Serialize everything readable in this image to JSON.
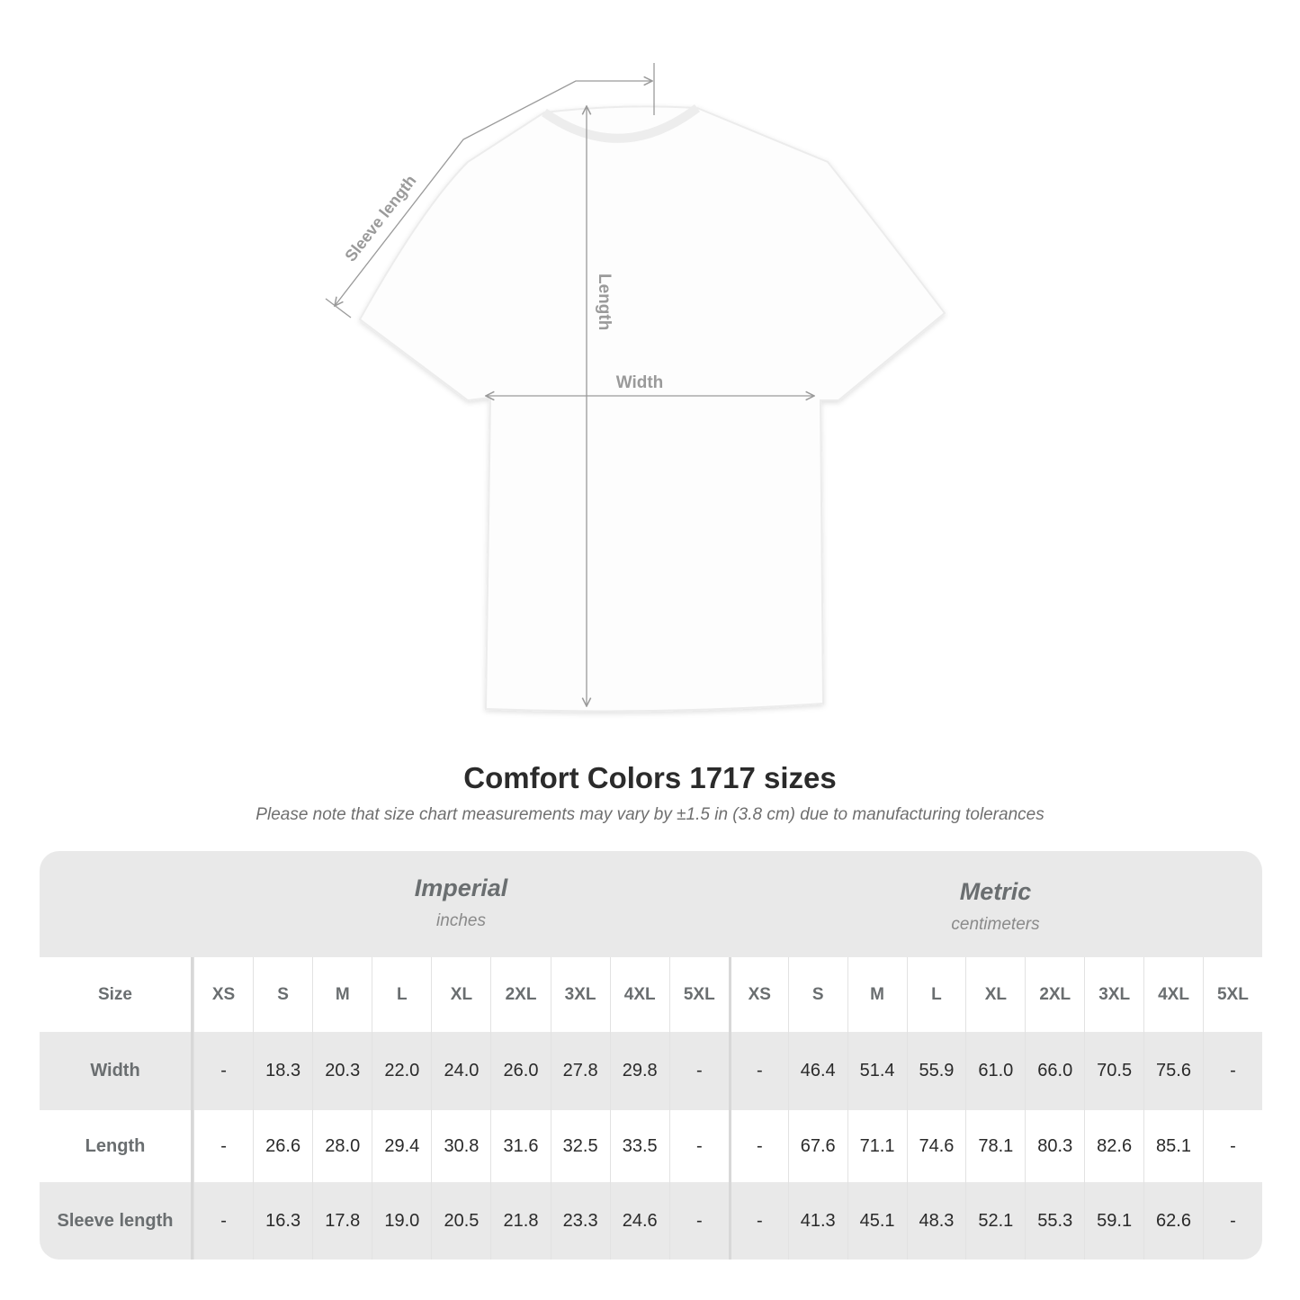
{
  "diagram": {
    "labels": {
      "sleeve": "Sleeve length",
      "length": "Length",
      "width": "Width"
    },
    "line_color": "#9a9a9a"
  },
  "title": "Comfort Colors 1717 sizes",
  "note": "Please note that size chart measurements may vary by ±1.5 in (3.8 cm) due to manufacturing tolerances",
  "table": {
    "groups": [
      {
        "title": "Imperial",
        "unit": "inches"
      },
      {
        "title": "Metric",
        "unit": "centimeters"
      }
    ],
    "size_label": "Size",
    "sizes": [
      "XS",
      "S",
      "M",
      "L",
      "XL",
      "2XL",
      "3XL",
      "4XL",
      "5XL"
    ],
    "rows": [
      {
        "label": "Width",
        "imperial": [
          "-",
          "18.3",
          "20.3",
          "22.0",
          "24.0",
          "26.0",
          "27.8",
          "29.8",
          "-"
        ],
        "metric": [
          "-",
          "46.4",
          "51.4",
          "55.9",
          "61.0",
          "66.0",
          "70.5",
          "75.6",
          "-"
        ]
      },
      {
        "label": "Length",
        "imperial": [
          "-",
          "26.6",
          "28.0",
          "29.4",
          "30.8",
          "31.6",
          "32.5",
          "33.5",
          "-"
        ],
        "metric": [
          "-",
          "67.6",
          "71.1",
          "74.6",
          "78.1",
          "80.3",
          "82.6",
          "85.1",
          "-"
        ]
      },
      {
        "label": "Sleeve length",
        "imperial": [
          "-",
          "16.3",
          "17.8",
          "19.0",
          "20.5",
          "21.8",
          "23.3",
          "24.6",
          "-"
        ],
        "metric": [
          "-",
          "41.3",
          "45.1",
          "48.3",
          "52.1",
          "55.3",
          "59.1",
          "62.6",
          "-"
        ]
      }
    ],
    "colors": {
      "band": "#e9e9e9",
      "header_text": "#6a6e70"
    }
  }
}
